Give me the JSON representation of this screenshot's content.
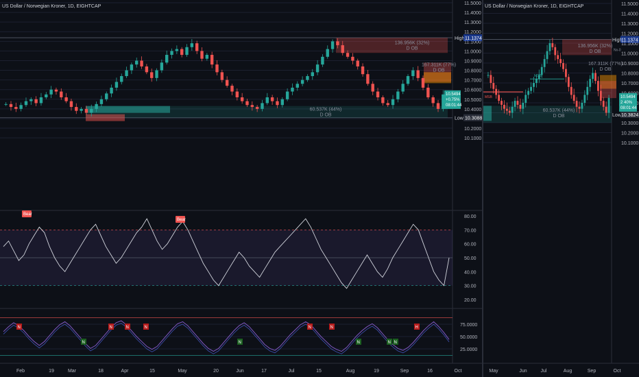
{
  "colors": {
    "bg": "#0d1017",
    "up": "#26a69a",
    "down": "#ef5350",
    "grid": "#1c2030",
    "text": "#b2b5be"
  },
  "left": {
    "title": "US Dollar / Norwegian Kroner, 1D, EIGHTCAP",
    "price_ticks": [
      "11.5000",
      "11.4000",
      "11.3000",
      "11.2000",
      "11.1000",
      "11.0000",
      "10.9000",
      "10.8000",
      "10.7000",
      "10.6000",
      "10.5000",
      "10.4000",
      "10.3000",
      "10.2000",
      "10.1000"
    ],
    "high_label": "High",
    "high_value": "11.1374",
    "low_label": "Low",
    "low_value": "10.3088",
    "price_badge": [
      "10.5494",
      "+0.75%",
      "08:01:44"
    ],
    "date_ticks": [
      "Feb",
      "19",
      "Mar",
      "18",
      "Apr",
      "15",
      "May",
      "20",
      "Jun",
      "17",
      "Jul",
      "15",
      "Aug",
      "19",
      "Sep",
      "16",
      "Oct"
    ],
    "ob_boxes": [
      {
        "line1": "136.956K (32%)",
        "line2": "D OB"
      },
      {
        "line1": "167.311K (77%)",
        "line2": "D OB"
      },
      {
        "line1": "60.537K (44%)",
        "line2": "D OB"
      }
    ],
    "rsi_ticks": [
      "80.00",
      "70.00",
      "60.00",
      "50.00",
      "40.00",
      "30.00",
      "20.00"
    ],
    "rsi_labels": [
      "Bear",
      "Bear"
    ],
    "osc_ticks": [
      "75.0000",
      "50.0000",
      "25.0000"
    ],
    "osc_n_label": "N",
    "osc_h_label": "H"
  },
  "right": {
    "title": "US Dollar / Norwegian Kroner, 1D, EIGHTCAP",
    "price_ticks": [
      "11.5000",
      "11.4000",
      "11.3000",
      "11.2000",
      "11.1000",
      "11.0000",
      "10.9000",
      "10.8000",
      "10.7000",
      "10.6000",
      "10.5000",
      "10.4000",
      "10.3000",
      "10.2000",
      "10.1000"
    ],
    "high_label": "High",
    "high_value": "11.1374",
    "low_label": "Low",
    "low_value": "10.3824",
    "price_badge": [
      "10.5494",
      "2 40%",
      "08:01:44"
    ],
    "date_ticks": [
      "May",
      "Jun",
      "Jul",
      "Aug",
      "Sep",
      "Oct"
    ],
    "ob_boxes": [
      {
        "line1": "136.956K (32%)",
        "line2": "D OB"
      },
      {
        "line1": "167.311K (77%)",
        "line2": "D OB"
      },
      {
        "line1": "60.537K (44%)",
        "line2": "D OB"
      }
    ],
    "mss_labels": [
      "MSB",
      "MSB"
    ],
    "marker": "Nx-0"
  },
  "chart_data": {
    "type": "candlestick",
    "title": "US Dollar / Norwegian Kroner, 1D, EIGHTCAP",
    "xlabel": "",
    "ylabel": "",
    "ylim": [
      10.1,
      11.5
    ],
    "y_ticks": [
      11.5,
      11.4,
      11.3,
      11.2,
      11.1,
      11.0,
      10.9,
      10.8,
      10.7,
      10.6,
      10.5,
      10.4,
      10.3,
      10.2,
      10.1
    ],
    "x_ticks": [
      "Feb",
      "19",
      "Mar",
      "18",
      "Apr",
      "15",
      "May",
      "20",
      "Jun",
      "17",
      "Jul",
      "15",
      "Aug",
      "19",
      "Sep",
      "16",
      "Oct"
    ],
    "close_series": [
      10.45,
      10.42,
      10.4,
      10.44,
      10.48,
      10.5,
      10.46,
      10.52,
      10.55,
      10.6,
      10.58,
      10.52,
      10.48,
      10.42,
      10.38,
      10.4,
      10.36,
      10.4,
      10.45,
      10.5,
      10.56,
      10.62,
      10.68,
      10.74,
      10.8,
      10.86,
      10.9,
      10.84,
      10.78,
      10.72,
      10.8,
      10.88,
      10.96,
      11.0,
      11.02,
      10.96,
      11.04,
      11.08,
      11.0,
      10.92,
      10.96,
      10.86,
      10.78,
      10.7,
      10.64,
      10.58,
      10.52,
      10.48,
      10.44,
      10.42,
      10.4,
      10.46,
      10.52,
      10.48,
      10.44,
      10.5,
      10.58,
      10.62,
      10.66,
      10.7,
      10.74,
      10.78,
      10.86,
      10.94,
      11.02,
      11.1,
      11.06,
      10.98,
      10.94,
      10.9,
      10.84,
      10.76,
      10.66,
      10.58,
      10.52,
      10.46,
      10.44,
      10.5,
      10.58,
      10.66,
      10.74,
      10.8,
      10.72,
      10.62,
      10.52,
      10.46,
      10.4,
      10.55
    ],
    "high": 11.1374,
    "low": 10.3088,
    "last": 10.5494,
    "rsi": {
      "ylim": [
        20,
        80
      ],
      "overbought": 70,
      "oversold": 30,
      "mid": 50,
      "series": [
        58,
        62,
        55,
        48,
        52,
        60,
        66,
        72,
        68,
        58,
        50,
        44,
        40,
        46,
        52,
        58,
        64,
        70,
        74,
        66,
        58,
        52,
        46,
        50,
        56,
        62,
        68,
        72,
        78,
        70,
        62,
        56,
        60,
        66,
        72,
        76,
        70,
        62,
        54,
        46,
        40,
        34,
        30,
        36,
        42,
        48,
        54,
        50,
        44,
        40,
        36,
        42,
        48,
        54,
        58,
        62,
        66,
        70,
        74,
        78,
        72,
        64,
        56,
        50,
        44,
        38,
        32,
        28,
        34,
        40,
        46,
        52,
        46,
        40,
        36,
        42,
        50,
        56,
        62,
        68,
        74,
        70,
        60,
        50,
        40,
        34,
        30,
        50
      ]
    },
    "osc": {
      "ylim": [
        0,
        100
      ],
      "series": [
        60,
        70,
        78,
        72,
        62,
        50,
        40,
        32,
        40,
        52,
        64,
        74,
        80,
        72,
        60,
        48,
        36,
        26,
        32,
        44,
        56,
        68,
        78,
        82,
        74,
        62,
        50,
        40,
        30,
        24,
        30,
        42,
        54,
        66,
        76,
        80,
        72,
        60,
        48,
        36,
        26,
        20,
        26,
        38,
        50,
        62,
        72,
        78,
        70,
        58,
        46,
        34,
        26,
        22,
        30,
        42,
        54,
        64,
        74,
        80,
        74,
        62,
        50,
        40,
        30,
        24,
        20,
        28,
        40,
        52,
        62,
        70,
        76,
        68,
        56,
        44,
        34,
        26,
        22,
        28,
        38,
        50,
        62,
        72,
        80,
        70,
        58,
        44
      ]
    }
  }
}
